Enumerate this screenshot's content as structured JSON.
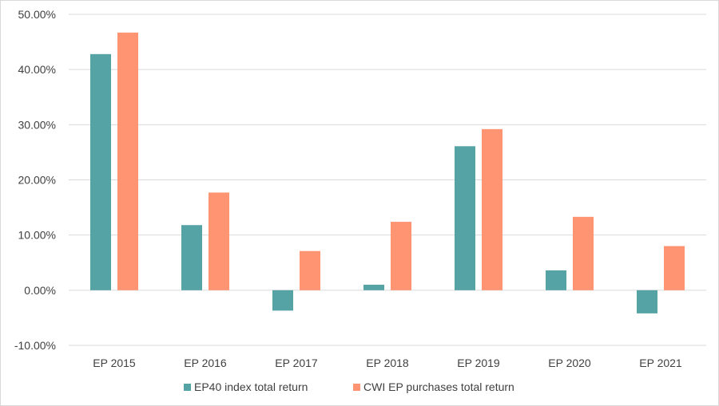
{
  "chart_data": {
    "type": "bar",
    "categories": [
      "EP 2015",
      "EP 2016",
      "EP 2017",
      "EP 2018",
      "EP 2019",
      "EP 2020",
      "EP 2021"
    ],
    "series": [
      {
        "name": "EP40 index total return",
        "color": "#56a3a6",
        "values": [
          42.8,
          11.8,
          -3.7,
          1.0,
          26.1,
          3.6,
          -4.2
        ]
      },
      {
        "name": "CWI EP purchases total return",
        "color": "#ff9473",
        "values": [
          46.7,
          17.7,
          7.1,
          12.4,
          29.2,
          13.3,
          8.0
        ]
      }
    ],
    "yticks": [
      "-10.00%",
      "0.00%",
      "10.00%",
      "20.00%",
      "30.00%",
      "40.00%",
      "50.00%"
    ],
    "ylim": [
      -10,
      50
    ],
    "grid": true,
    "legend_position": "bottom"
  }
}
